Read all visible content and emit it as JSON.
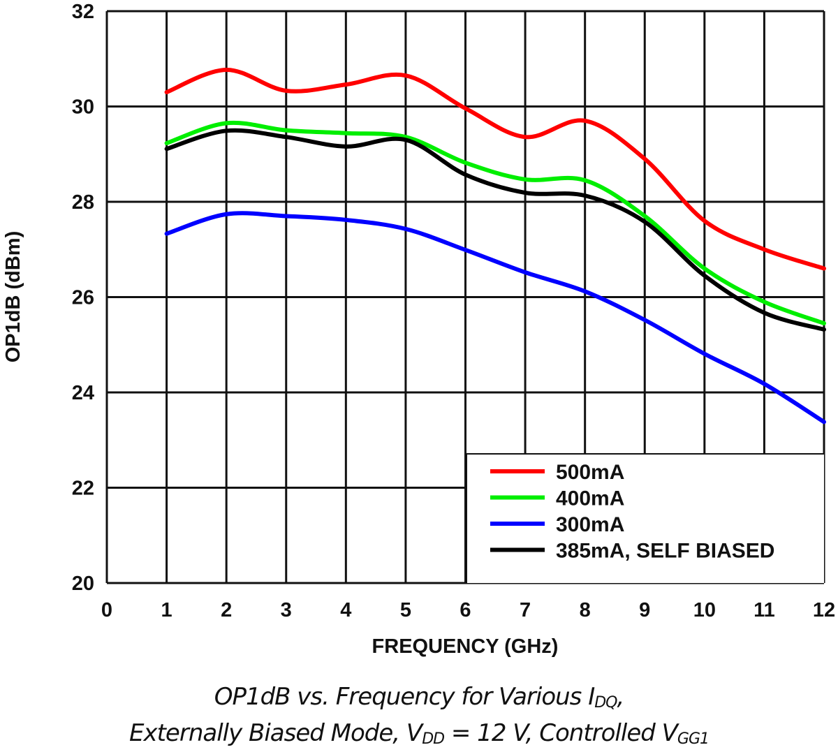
{
  "chart_data": {
    "type": "line",
    "xlabel": "FREQUENCY (GHz)",
    "ylabel": "OP1dB (dBm)",
    "xlim": [
      0,
      12
    ],
    "ylim": [
      20,
      32
    ],
    "xticks": [
      "0",
      "1",
      "2",
      "3",
      "4",
      "5",
      "6",
      "7",
      "8",
      "9",
      "10",
      "11",
      "12"
    ],
    "yticks": [
      "20",
      "22",
      "24",
      "26",
      "28",
      "30",
      "32"
    ],
    "grid": true,
    "legend_position": "bottom-right",
    "x": [
      1,
      2,
      3,
      4,
      5,
      6,
      7,
      8,
      9,
      10,
      11,
      12
    ],
    "series": [
      {
        "name": "500mA",
        "color": "#ff0000",
        "values": [
          30.3,
          30.77,
          30.33,
          30.46,
          30.65,
          29.96,
          29.36,
          29.7,
          28.9,
          27.6,
          27.0,
          26.6
        ]
      },
      {
        "name": "400mA",
        "color": "#00ee00",
        "values": [
          29.23,
          29.65,
          29.5,
          29.44,
          29.36,
          28.82,
          28.47,
          28.45,
          27.7,
          26.6,
          25.9,
          25.45
        ]
      },
      {
        "name": "300mA",
        "color": "#0000ff",
        "values": [
          27.33,
          27.74,
          27.7,
          27.62,
          27.43,
          26.99,
          26.52,
          26.12,
          25.52,
          24.81,
          24.18,
          23.38
        ]
      },
      {
        "name": "385mA, SELF BIASED",
        "color": "#000000",
        "values": [
          29.11,
          29.49,
          29.36,
          29.16,
          29.3,
          28.57,
          28.19,
          28.13,
          27.58,
          26.45,
          25.67,
          25.32
        ]
      }
    ]
  },
  "caption": {
    "line1_main": "OP1dB vs. Frequency for Various I",
    "line1_sub": "DQ",
    "line1_end": ",",
    "line2_a": "Externally Biased Mode, V",
    "line2_sub1": "DD",
    "line2_b": " = 12 V, Controlled V",
    "line2_sub2": "GG1"
  }
}
